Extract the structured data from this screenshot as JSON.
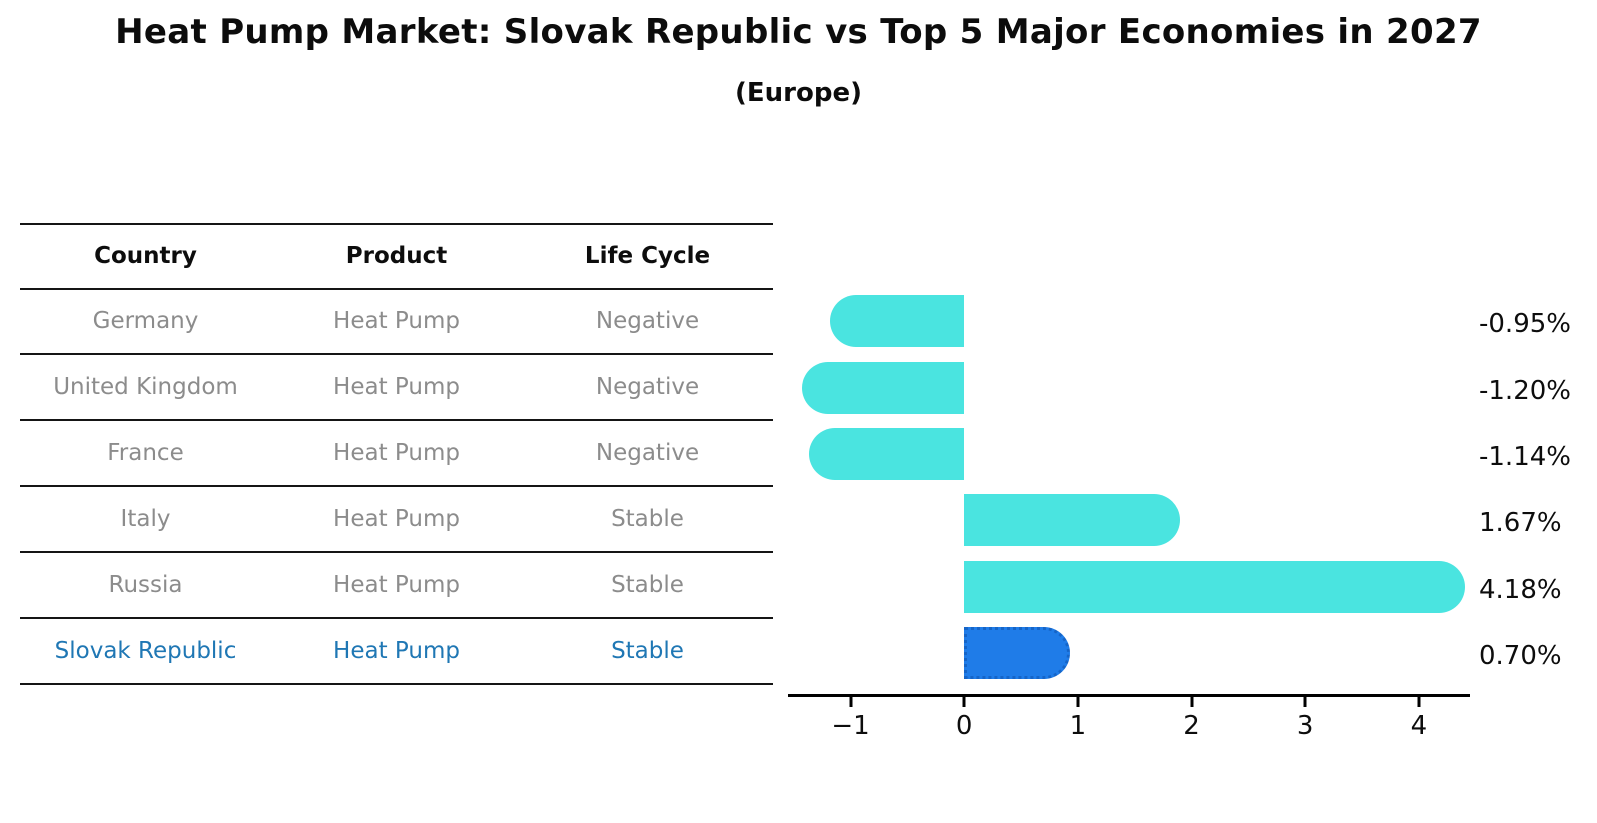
{
  "title": "Heat Pump Market: Slovak Republic vs Top 5 Major Economies in 2027",
  "subtitle": "(Europe)",
  "table": {
    "headers": [
      "Country",
      "Product",
      "Life Cycle"
    ],
    "rows": [
      {
        "country": "Germany",
        "product": "Heat Pump",
        "life_cycle": "Negative",
        "highlighted": false
      },
      {
        "country": "United Kingdom",
        "product": "Heat Pump",
        "life_cycle": "Negative",
        "highlighted": false
      },
      {
        "country": "France",
        "product": "Heat Pump",
        "life_cycle": "Negative",
        "highlighted": false
      },
      {
        "country": "Italy",
        "product": "Heat Pump",
        "life_cycle": "Stable",
        "highlighted": false
      },
      {
        "country": "Russia",
        "product": "Heat Pump",
        "life_cycle": "Stable",
        "highlighted": false
      },
      {
        "country": "Slovak Republic",
        "product": "Heat Pump",
        "life_cycle": "Stable",
        "highlighted": true
      }
    ]
  },
  "chart_data": {
    "type": "bar",
    "orientation": "horizontal",
    "title": "Heat Pump Market: Slovak Republic vs Top 5 Major Economies in 2027",
    "subtitle": "(Europe)",
    "categories": [
      "Germany",
      "United Kingdom",
      "France",
      "Italy",
      "Russia",
      "Slovak Republic"
    ],
    "values": [
      -0.95,
      -1.2,
      -1.14,
      1.67,
      4.18,
      0.7
    ],
    "value_labels": [
      "-0.95%",
      "-1.20%",
      "-1.14%",
      "1.67%",
      "4.18%",
      "0.70%"
    ],
    "x_ticks": [
      -1,
      0,
      1,
      2,
      3,
      4
    ],
    "x_tick_labels": [
      "−1",
      "0",
      "1",
      "2",
      "3",
      "4"
    ],
    "xlim": [
      -1.55,
      4.45
    ],
    "grid": false,
    "legend": false,
    "highlight_index": 5,
    "colors": {
      "bar_default": "#4ae4e0",
      "bar_highlight": "#1f7ce8",
      "bar_highlight_border": "#1565c8",
      "highlight_text": "#1f77b4",
      "row_text": "#8c8c8c",
      "header_text": "#0d0d0d",
      "axis": "#000000"
    }
  }
}
